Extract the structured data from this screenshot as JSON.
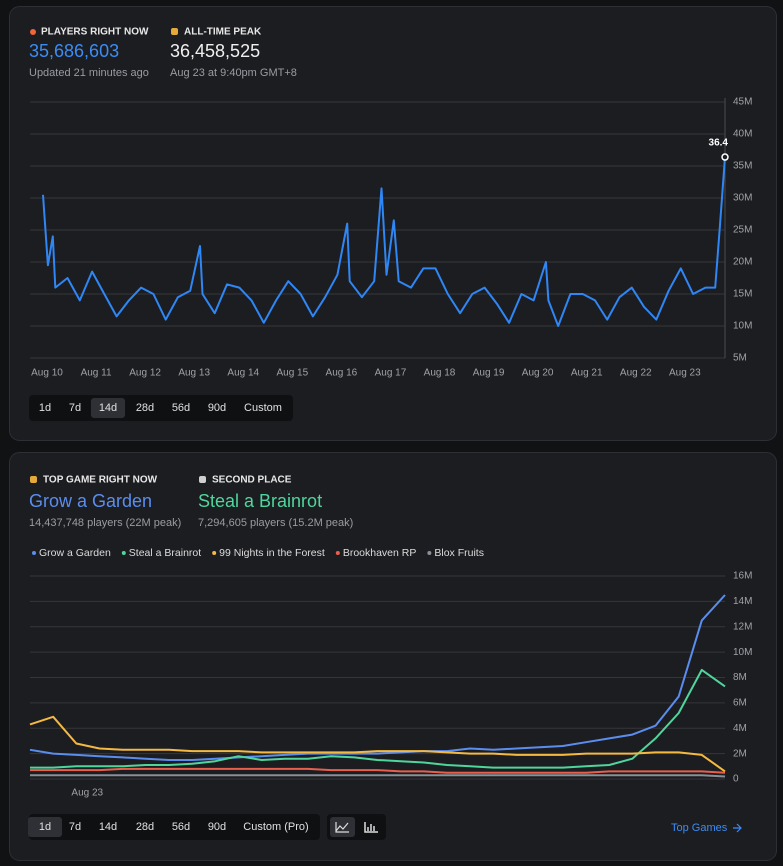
{
  "panel1": {
    "players_label": "PLAYERS RIGHT NOW",
    "players": "35,686,603",
    "updated": "Updated 21 minutes ago",
    "peak_label": "ALL-TIME PEAK",
    "peak": "36,458,525",
    "peak_time": "Aug 23 at 9:40pm GMT+8",
    "ranges": [
      "1d",
      "7d",
      "14d",
      "28d",
      "56d",
      "90d",
      "Custom"
    ],
    "selected_range": "14d"
  },
  "panel2": {
    "top_label": "TOP GAME RIGHT NOW",
    "top_game": "Grow a Garden",
    "top_stats": "14,437,748 players (22M peak)",
    "second_label": "SECOND PLACE",
    "second_game": "Steal a Brainrot",
    "second_stats": "7,294,605 players (15.2M peak)",
    "ranges": [
      "1d",
      "7d",
      "14d",
      "28d",
      "56d",
      "90d",
      "Custom (Pro)"
    ],
    "selected_range": "1d",
    "link": "Top Games"
  },
  "chart_data": [
    {
      "type": "line",
      "color": "#2f86f5",
      "annotation": "36.4",
      "x": [
        0,
        0.1,
        0.2,
        0.25,
        0.5,
        0.75,
        1,
        1.25,
        1.5,
        1.75,
        2,
        2.25,
        2.5,
        2.75,
        3,
        3.2,
        3.25,
        3.5,
        3.75,
        4,
        4.25,
        4.5,
        4.75,
        5,
        5.25,
        5.5,
        5.75,
        6,
        6.2,
        6.25,
        6.5,
        6.75,
        6.9,
        7,
        7.15,
        7.25,
        7.5,
        7.75,
        8,
        8.25,
        8.5,
        8.75,
        9,
        9.25,
        9.5,
        9.75,
        10,
        10.25,
        10.3,
        10.5,
        10.75,
        11,
        11.25,
        11.5,
        11.75,
        12,
        12.25,
        12.5,
        12.75,
        13,
        13.25,
        13.5,
        13.7,
        13.8,
        13.9
      ],
      "values": [
        30.5,
        19.5,
        24,
        16,
        17.5,
        14,
        18.5,
        15,
        11.5,
        14,
        16,
        15,
        11,
        14.5,
        15.5,
        22.5,
        15,
        12,
        16.5,
        16,
        14,
        10.5,
        14,
        17,
        15,
        11.5,
        14.5,
        18,
        26,
        17,
        14.5,
        17,
        31.5,
        18,
        26.5,
        17,
        16,
        19,
        19,
        15,
        12,
        15,
        16,
        13.5,
        10.5,
        15,
        14,
        20,
        14,
        10,
        15,
        15,
        14,
        11,
        14.5,
        16,
        13,
        11,
        15.5,
        19,
        15,
        16,
        16,
        26,
        36.4
      ],
      "xlim": [
        0,
        13.9
      ],
      "xticks": [
        {
          "value": 0,
          "label": "Aug 10"
        },
        {
          "value": 1,
          "label": "Aug 11"
        },
        {
          "value": 2,
          "label": "Aug 12"
        },
        {
          "value": 3,
          "label": "Aug 13"
        },
        {
          "value": 4,
          "label": "Aug 14"
        },
        {
          "value": 5,
          "label": "Aug 15"
        },
        {
          "value": 6,
          "label": "Aug 16"
        },
        {
          "value": 7,
          "label": "Aug 17"
        },
        {
          "value": 8,
          "label": "Aug 18"
        },
        {
          "value": 9,
          "label": "Aug 19"
        },
        {
          "value": 10,
          "label": "Aug 20"
        },
        {
          "value": 11,
          "label": "Aug 21"
        },
        {
          "value": 12,
          "label": "Aug 22"
        },
        {
          "value": 13,
          "label": "Aug 23"
        }
      ],
      "ylim": [
        5,
        45
      ],
      "yticks": [
        {
          "value": 5,
          "label": "5M"
        },
        {
          "value": 10,
          "label": "10M"
        },
        {
          "value": 15,
          "label": "15M"
        },
        {
          "value": 20,
          "label": "20M"
        },
        {
          "value": 25,
          "label": "25M"
        },
        {
          "value": 30,
          "label": "30M"
        },
        {
          "value": 35,
          "label": "35M"
        },
        {
          "value": 40,
          "label": "40M"
        },
        {
          "value": 45,
          "label": "45M"
        }
      ],
      "grid": true
    },
    {
      "type": "line",
      "legend": "top-left",
      "x": [
        0,
        1,
        2,
        3,
        4,
        5,
        6,
        7,
        8,
        9,
        10,
        11,
        12,
        13,
        14,
        15,
        16,
        17,
        18,
        19,
        20,
        21,
        22,
        23,
        24,
        25,
        26,
        27,
        28,
        29,
        30
      ],
      "series": [
        {
          "name": "Grow a Garden",
          "color": "#5b8def",
          "values": [
            2.3,
            2.0,
            1.9,
            1.8,
            1.7,
            1.6,
            1.5,
            1.5,
            1.6,
            1.7,
            1.8,
            1.9,
            2.0,
            2.0,
            2.0,
            2.0,
            2.1,
            2.2,
            2.2,
            2.4,
            2.3,
            2.4,
            2.5,
            2.6,
            2.9,
            3.2,
            3.5,
            4.2,
            6.5,
            12.5,
            14.5
          ]
        },
        {
          "name": "Steal a Brainrot",
          "color": "#4fd69c",
          "values": [
            0.9,
            0.9,
            1.0,
            1.0,
            1.0,
            1.1,
            1.1,
            1.2,
            1.4,
            1.8,
            1.5,
            1.6,
            1.6,
            1.8,
            1.7,
            1.5,
            1.4,
            1.3,
            1.1,
            1.0,
            0.9,
            0.9,
            0.9,
            0.9,
            1.0,
            1.1,
            1.6,
            3.2,
            5.2,
            8.6,
            7.3
          ]
        },
        {
          "name": "99 Nights in the Forest",
          "color": "#f5b942",
          "values": [
            4.3,
            4.9,
            2.8,
            2.4,
            2.3,
            2.3,
            2.3,
            2.2,
            2.2,
            2.2,
            2.1,
            2.1,
            2.1,
            2.1,
            2.1,
            2.2,
            2.2,
            2.2,
            2.1,
            2.0,
            2.0,
            1.9,
            1.9,
            1.9,
            2.0,
            2.0,
            2.0,
            2.1,
            2.1,
            1.9,
            0.6
          ]
        },
        {
          "name": "Brookhaven RP",
          "color": "#e8604c",
          "values": [
            0.7,
            0.7,
            0.7,
            0.7,
            0.8,
            0.8,
            0.8,
            0.8,
            0.8,
            0.8,
            0.8,
            0.8,
            0.8,
            0.7,
            0.7,
            0.7,
            0.6,
            0.6,
            0.5,
            0.5,
            0.5,
            0.5,
            0.5,
            0.5,
            0.5,
            0.6,
            0.6,
            0.6,
            0.6,
            0.6,
            0.5
          ]
        },
        {
          "name": "Blox Fruits",
          "color": "#8a8f98",
          "values": [
            0.3,
            0.3,
            0.3,
            0.3,
            0.3,
            0.3,
            0.3,
            0.3,
            0.3,
            0.3,
            0.3,
            0.3,
            0.3,
            0.3,
            0.3,
            0.3,
            0.3,
            0.3,
            0.3,
            0.3,
            0.3,
            0.3,
            0.3,
            0.3,
            0.3,
            0.3,
            0.3,
            0.3,
            0.3,
            0.3,
            0.2
          ]
        }
      ],
      "xlim": [
        0,
        30
      ],
      "xticks": [
        {
          "value": 2.3,
          "label": "Aug 23"
        }
      ],
      "ylim": [
        0,
        16
      ],
      "yticks": [
        0,
        {
          "value": 2,
          "label": "2M"
        },
        {
          "value": 4,
          "label": "4M"
        },
        {
          "value": 6,
          "label": "6M"
        },
        {
          "value": 8,
          "label": "8M"
        },
        {
          "value": 10,
          "label": "10M"
        },
        {
          "value": 12,
          "label": "12M"
        },
        {
          "value": 14,
          "label": "14M"
        },
        {
          "value": 16,
          "label": "16M"
        }
      ],
      "grid": true
    }
  ]
}
